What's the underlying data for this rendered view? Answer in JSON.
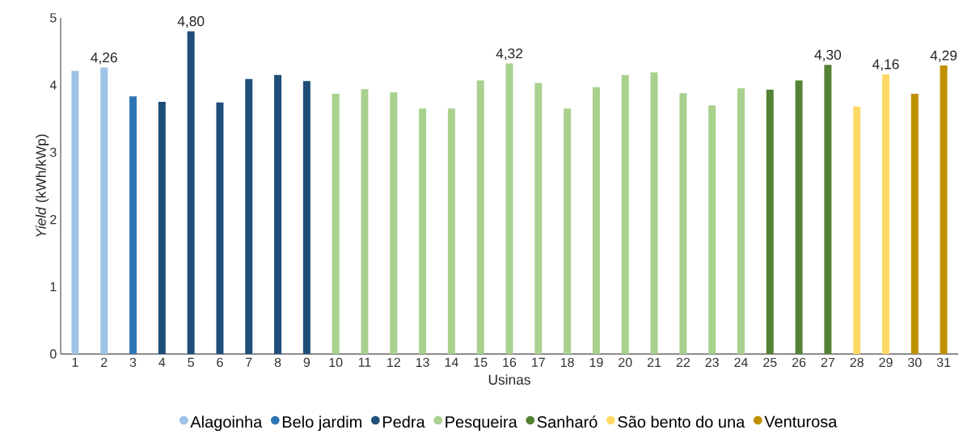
{
  "chart_data": {
    "type": "bar",
    "xlabel": "Usinas",
    "ylabel": "*Yield* (kWh/kWp)",
    "categories": [
      "1",
      "2",
      "3",
      "4",
      "5",
      "6",
      "7",
      "8",
      "9",
      "10",
      "11",
      "12",
      "13",
      "14",
      "15",
      "16",
      "17",
      "18",
      "19",
      "20",
      "21",
      "22",
      "23",
      "24",
      "25",
      "26",
      "27",
      "28",
      "29",
      "30",
      "31"
    ],
    "ylim": [
      0,
      5
    ],
    "yticks": [
      0,
      1,
      2,
      3,
      4,
      5
    ],
    "legend": "bottom",
    "series": [
      {
        "name": "Alagoinha",
        "color": "#9dc3e6",
        "values": [
          4.21,
          4.26,
          null,
          null,
          null,
          null,
          null,
          null,
          null,
          null,
          null,
          null,
          null,
          null,
          null,
          null,
          null,
          null,
          null,
          null,
          null,
          null,
          null,
          null,
          null,
          null,
          null,
          null,
          null,
          null,
          null
        ],
        "value_labels": [
          null,
          "4,26",
          null,
          null,
          null,
          null,
          null,
          null,
          null,
          null,
          null,
          null,
          null,
          null,
          null,
          null,
          null,
          null,
          null,
          null,
          null,
          null,
          null,
          null,
          null,
          null,
          null,
          null,
          null,
          null,
          null
        ]
      },
      {
        "name": "Belo jardim",
        "color": "#2e75b6",
        "values": [
          null,
          null,
          3.83,
          null,
          null,
          null,
          null,
          null,
          null,
          null,
          null,
          null,
          null,
          null,
          null,
          null,
          null,
          null,
          null,
          null,
          null,
          null,
          null,
          null,
          null,
          null,
          null,
          null,
          null,
          null,
          null
        ]
      },
      {
        "name": "Pedra",
        "color": "#1f4e79",
        "values": [
          null,
          null,
          null,
          3.75,
          4.8,
          3.74,
          4.09,
          4.15,
          4.06,
          null,
          null,
          null,
          null,
          null,
          null,
          null,
          null,
          null,
          null,
          null,
          null,
          null,
          null,
          null,
          null,
          null,
          null,
          null,
          null,
          null,
          null
        ],
        "value_labels": [
          null,
          null,
          null,
          null,
          "4,80",
          null,
          null,
          null,
          null,
          null,
          null,
          null,
          null,
          null,
          null,
          null,
          null,
          null,
          null,
          null,
          null,
          null,
          null,
          null,
          null,
          null,
          null,
          null,
          null,
          null,
          null
        ]
      },
      {
        "name": "Pesqueira",
        "color": "#a9d18e",
        "values": [
          null,
          null,
          null,
          null,
          null,
          null,
          null,
          null,
          null,
          3.87,
          3.94,
          3.89,
          3.65,
          3.65,
          4.07,
          4.32,
          4.03,
          3.65,
          3.97,
          4.15,
          4.19,
          3.88,
          3.7,
          3.95,
          null,
          null,
          null,
          null,
          null,
          null,
          null
        ],
        "value_labels": [
          null,
          null,
          null,
          null,
          null,
          null,
          null,
          null,
          null,
          null,
          null,
          null,
          null,
          null,
          null,
          "4,32",
          null,
          null,
          null,
          null,
          null,
          null,
          null,
          null,
          null,
          null,
          null,
          null,
          null,
          null,
          null
        ]
      },
      {
        "name": "Sanharó",
        "color": "#548235",
        "values": [
          null,
          null,
          null,
          null,
          null,
          null,
          null,
          null,
          null,
          null,
          null,
          null,
          null,
          null,
          null,
          null,
          null,
          null,
          null,
          null,
          null,
          null,
          null,
          null,
          3.93,
          4.07,
          4.3,
          null,
          null,
          null,
          null
        ],
        "value_labels": [
          null,
          null,
          null,
          null,
          null,
          null,
          null,
          null,
          null,
          null,
          null,
          null,
          null,
          null,
          null,
          null,
          null,
          null,
          null,
          null,
          null,
          null,
          null,
          null,
          null,
          null,
          "4,30",
          null,
          null,
          null,
          null
        ]
      },
      {
        "name": "São bento do una",
        "color": "#ffd966",
        "values": [
          null,
          null,
          null,
          null,
          null,
          null,
          null,
          null,
          null,
          null,
          null,
          null,
          null,
          null,
          null,
          null,
          null,
          null,
          null,
          null,
          null,
          null,
          null,
          null,
          null,
          null,
          null,
          3.68,
          4.16,
          null,
          null
        ],
        "value_labels": [
          null,
          null,
          null,
          null,
          null,
          null,
          null,
          null,
          null,
          null,
          null,
          null,
          null,
          null,
          null,
          null,
          null,
          null,
          null,
          null,
          null,
          null,
          null,
          null,
          null,
          null,
          null,
          null,
          "4,16",
          null,
          null
        ]
      },
      {
        "name": "Venturosa",
        "color": "#bf9000",
        "values": [
          null,
          null,
          null,
          null,
          null,
          null,
          null,
          null,
          null,
          null,
          null,
          null,
          null,
          null,
          null,
          null,
          null,
          null,
          null,
          null,
          null,
          null,
          null,
          null,
          null,
          null,
          null,
          null,
          null,
          3.87,
          4.29
        ],
        "value_labels": [
          null,
          null,
          null,
          null,
          null,
          null,
          null,
          null,
          null,
          null,
          null,
          null,
          null,
          null,
          null,
          null,
          null,
          null,
          null,
          null,
          null,
          null,
          null,
          null,
          null,
          null,
          null,
          null,
          null,
          null,
          "4,29"
        ]
      }
    ]
  }
}
